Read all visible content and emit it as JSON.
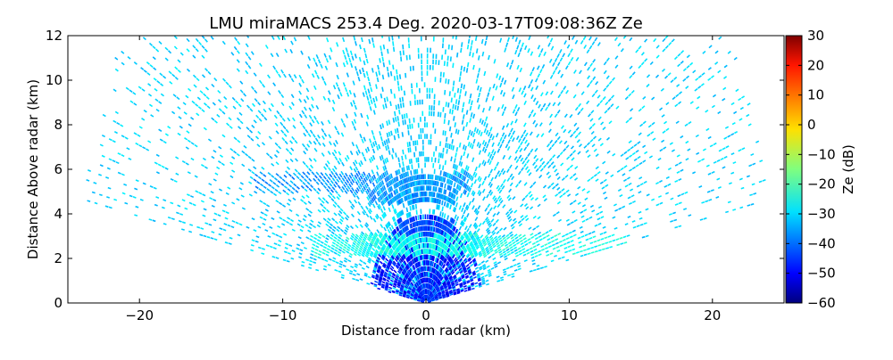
{
  "chart_data": {
    "type": "heatmap",
    "title": "LMU miraMACS 253.4 Deg. 2020-03-17T09:08:36Z  Ze",
    "xlabel": "Distance from radar (km)",
    "ylabel": "Distance Above radar  (km)",
    "xlim": [
      -25,
      25
    ],
    "ylim": [
      0,
      12
    ],
    "xticks": [
      -20,
      -10,
      0,
      10,
      20
    ],
    "xtick_labels": [
      "−20",
      "−10",
      "0",
      "10",
      "20"
    ],
    "yticks": [
      0,
      2,
      4,
      6,
      8,
      10,
      12
    ],
    "ytick_labels": [
      "0",
      "2",
      "4",
      "6",
      "8",
      "10",
      "12"
    ],
    "colorbar": {
      "label": "Ze (dB)",
      "range": [
        -60,
        30
      ],
      "colormap": "jet",
      "ticks": [
        -60,
        -50,
        -40,
        -30,
        -20,
        -10,
        0,
        10,
        20,
        30
      ],
      "tick_labels": [
        "−60",
        "−50",
        "−40",
        "−30",
        "−20",
        "−10",
        "0",
        "10",
        "20",
        "30"
      ]
    },
    "scan": {
      "max_range_km": 24.5,
      "elevation_start_deg": 11,
      "elevation_end_deg": 169,
      "background_ze_db": -30,
      "near_radar_ze_db": -52
    },
    "layers": [
      {
        "x_start": -12,
        "x_end": 3,
        "height": 5.4,
        "thickness": 0.45,
        "ze_db": -35
      },
      {
        "x_start": -4,
        "x_end": 2,
        "height": 4.7,
        "thickness": 0.25,
        "ze_db": -36
      },
      {
        "x_start": -8,
        "x_end": 14,
        "height": 2.6,
        "thickness": 0.5,
        "ze_db": -25
      },
      {
        "x_start": -2,
        "x_end": 2,
        "height": 3.4,
        "thickness": 0.35,
        "ze_db": -42
      }
    ],
    "grid": false
  }
}
